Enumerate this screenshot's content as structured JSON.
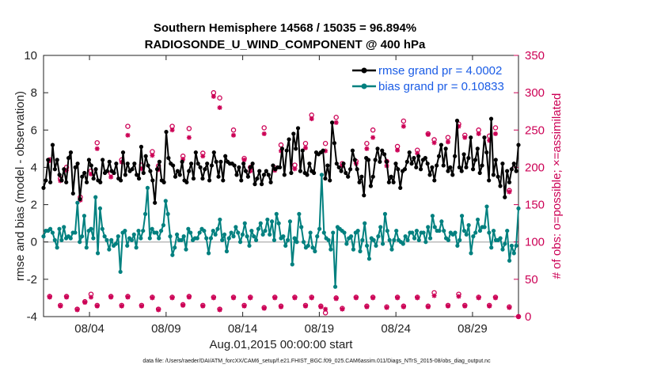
{
  "chart_data": {
    "type": "line",
    "title": "Southern Hemisphere 14568 / 15035 = 96.894%",
    "subtitle": "RADIOSONDE_U_WIND_COMPONENT @ 400 hPa",
    "xlabel": "Aug.01,2015 00:00:00 start",
    "ylabel": "rmse and bias (model - observation)",
    "ylabel_right": "# of obs: o=possible; ×=assimilated",
    "footnote": "data file: /Users/raeder/DAI/ATM_forcXX/CAM6_setup/f.e21.FHIST_BGC.f09_025.CAM6assim.011/Diags_NTrS_2015-08/obs_diag_output.nc",
    "xlim": [
      1,
      32
    ],
    "ylim": [
      -4,
      10
    ],
    "ylim_right": [
      0,
      350
    ],
    "x_ticks": [
      4,
      9,
      14,
      19,
      24,
      29
    ],
    "x_tick_labels": [
      "08/04",
      "08/09",
      "08/14",
      "08/19",
      "08/24",
      "08/29"
    ],
    "y_ticks": [
      -4,
      -2,
      0,
      2,
      4,
      6,
      8,
      10
    ],
    "y_tick_labels": [
      "-4",
      "-2",
      "0",
      "2",
      "4",
      "6",
      "8",
      "10"
    ],
    "y_ticks_right": [
      0,
      50,
      100,
      150,
      200,
      250,
      300,
      350
    ],
    "y_tick_labels_right": [
      "0",
      "50",
      "100",
      "150",
      "200",
      "250",
      "300",
      "350"
    ],
    "legend_position": "top-right",
    "series": [
      {
        "name": "rmse grand pr = 4.0002",
        "color": "#000000",
        "values": [
          2.9,
          3.3,
          4.4,
          3.2,
          5.2,
          3.9,
          4.4,
          3.6,
          3.3,
          3.9,
          3.2,
          4.5,
          4.8,
          2.6,
          4.0,
          4.2,
          2.3,
          3.5,
          3.7,
          3.2,
          4.4,
          4.1,
          3.4,
          3.9,
          3.3,
          3.2,
          4.4,
          3.7,
          3.8,
          4.3,
          3.8,
          3.7,
          4.2,
          3.4,
          3.3,
          4.8,
          3.6,
          4.2,
          3.8,
          3.9,
          4.2,
          3.6,
          3.4,
          5.1,
          3.7,
          4.6,
          4.1,
          3.8,
          3.3,
          2.1,
          3.9,
          4.3,
          3.3,
          3.2,
          5.9,
          4.5,
          4.2,
          4.1,
          3.5,
          3.8,
          3.6,
          4.3,
          3.3,
          3.2,
          3.8,
          4.2,
          3.4,
          4.8,
          4.2,
          4.0,
          3.4,
          3.9,
          4.2,
          3.3,
          4.1,
          4.8,
          4.3,
          3.5,
          4.3,
          3.3,
          4.6,
          4.3,
          4.2,
          4.2,
          4.1,
          3.6,
          4.0,
          3.3,
          4.2,
          3.8,
          3.5,
          4.0,
          4.2,
          3.1,
          3.4,
          3.8,
          3.1,
          3.6,
          3.8,
          3.6,
          3.2,
          4.1,
          3.9,
          4.0,
          4.0,
          5.0,
          3.6,
          4.9,
          5.5,
          3.7,
          5.8,
          5.0,
          6.1,
          3.8,
          4.9,
          3.7,
          3.6,
          4.2,
          3.8,
          3.7,
          4.8,
          4.7,
          4.8,
          4.9,
          3.4,
          4.1,
          3.3,
          6.4,
          5.3,
          4.2,
          4.0,
          3.8,
          4.2,
          3.7,
          3.5,
          3.9,
          4.9,
          4.4,
          3.9,
          3.2,
          3.5,
          2.5,
          4.5,
          4.4,
          3.0,
          3.5,
          4.4,
          5.0,
          4.3,
          4.9,
          4.7,
          4.3,
          3.2,
          3.5,
          3.2,
          4.2,
          3.9,
          2.9,
          3.8,
          3.9,
          4.3,
          4.8,
          4.2,
          4.5,
          4.0,
          4.6,
          3.9,
          4.4,
          4.5,
          4.2,
          3.6,
          4.0,
          3.3,
          4.1,
          4.6,
          5.2,
          4.1,
          5.0,
          3.8,
          4.0,
          3.6,
          4.6,
          6.5,
          4.0,
          3.8,
          4.7,
          4.0,
          4.5,
          5.6,
          3.9,
          4.4,
          5.0,
          3.7,
          4.1,
          5.6,
          4.8,
          3.3,
          6.6,
          3.6,
          4.4,
          3.5,
          3.0,
          4.2,
          2.4,
          3.8,
          3.2,
          3.9,
          4.2,
          3.8,
          5.2
        ]
      },
      {
        "name": "bias grand pr = 0.10833",
        "color": "#00807f",
        "values": [
          0.3,
          0.6,
          0.6,
          0.7,
          0.5,
          0.1,
          -0.3,
          0.7,
          0.1,
          0.8,
          0.2,
          0.3,
          0.2,
          0.5,
          0.5,
          2.1,
          0.0,
          0.3,
          1.4,
          -0.3,
          0.6,
          0.7,
          0.2,
          2.4,
          -0.6,
          1.8,
          0.7,
          0.3,
          0.1,
          -0.4,
          0.1,
          -0.2,
          -0.1,
          0.3,
          -1.6,
          0.5,
          0.6,
          -0.2,
          0.2,
          0.1,
          0.4,
          -0.3,
          0.6,
          0.2,
          0.6,
          1.5,
          2.9,
          0.2,
          0.7,
          0.5,
          0.5,
          0.2,
          0.6,
          0.9,
          2.2,
          1.5,
          0.3,
          -0.7,
          -0.3,
          0.4,
          0.1,
          0.1,
          0.3,
          -0.4,
          0.7,
          0.5,
          0.1,
          0.2,
          0.2,
          0.5,
          0.7,
          0.6,
          0.2,
          -0.6,
          0.2,
          0.6,
          0.4,
          0.7,
          1.2,
          0.1,
          0.4,
          -0.5,
          0.2,
          0.5,
          0.3,
          0.8,
          0.5,
          0.0,
          0.4,
          1.0,
          0.3,
          -0.2,
          0.6,
          0.3,
          0.1,
          0.7,
          1.0,
          0.4,
          0.6,
          1.2,
          0.4,
          1.1,
          0.1,
          1.5,
          1.0,
          0.2,
          0.3,
          -0.2,
          0.1,
          1.1,
          -1.2,
          0.2,
          0.0,
          1.5,
          0.8,
          0.0,
          -0.3,
          -0.2,
          0.5,
          -0.3,
          -0.5,
          0.3,
          0.7,
          3.6,
          0.5,
          0.2,
          0.1,
          -0.4,
          0.5,
          -2.4,
          0.8,
          0.7,
          0.6,
          0.5,
          -0.1,
          0.2,
          0.3,
          -0.4,
          0.5,
          0.6,
          -0.5,
          0.1,
          1.0,
          -0.2,
          -0.9,
          0.2,
          0.1,
          -0.2,
          0.3,
          0.8,
          -0.1,
          1.5,
          0.6,
          0.1,
          -0.4,
          0.1,
          0.6,
          0.1,
          0.0,
          -0.1,
          0.3,
          0.1,
          0.5,
          0.5,
          0.2,
          0.6,
          0.1,
          0.5,
          0.5,
          0.0,
          0.8,
          0.2,
          1.4,
          0.8,
          0.6,
          0.6,
          1.1,
          0.6,
          0.2,
          0.1,
          0.5,
          0.4,
          0.5,
          -0.2,
          0.1,
          1.4,
          0.6,
          0.4,
          0.9,
          -0.6,
          0.3,
          0.5,
          1.2,
          0.6,
          0.8,
          0.8,
          1.9,
          0.5,
          -0.3,
          0.6,
          0.1,
          0.1,
          0.2,
          -0.4,
          -0.1,
          0.6,
          -1.0,
          -0.2,
          -0.6,
          -0.2,
          1.8
        ]
      }
    ],
    "obs_possible": {
      "name": "possible",
      "color": "#cc0055",
      "marker": "o",
      "x": [
        1.4,
        2.1,
        2.5,
        3.4,
        4.1,
        4.5,
        5.4,
        6.1,
        6.5,
        7.4,
        8.1,
        8.5,
        9.4,
        10.1,
        10.5,
        11.4,
        12.1,
        12.5,
        13.4,
        14.1,
        14.5,
        15.4,
        16.1,
        16.5,
        17.4,
        18.1,
        18.5,
        19.4,
        20.1,
        20.5,
        21.4,
        22.1,
        22.5,
        23.4,
        24.1,
        24.5,
        25.4,
        26.1,
        26.5,
        27.4,
        28.1,
        28.5,
        29.4,
        30.1,
        30.5,
        31.4,
        32.0
      ],
      "y": [
        210,
        185,
        200,
        160,
        195,
        233,
        192,
        210,
        255,
        203,
        221,
        202,
        255,
        215,
        252,
        219,
        300,
        293,
        250,
        212,
        200,
        253,
        199,
        230,
        203,
        232,
        270,
        232,
        267,
        205,
        208,
        232,
        250,
        208,
        228,
        262,
        223,
        245,
        237,
        240,
        258,
        243,
        250,
        242,
        253,
        169,
        0
      ]
    },
    "obs_assimilated": {
      "name": "assimilated",
      "color": "#cc0055",
      "marker": "*",
      "x": [
        1.4,
        2.1,
        2.5,
        3.4,
        4.1,
        4.5,
        5.4,
        6.1,
        6.5,
        7.4,
        8.1,
        8.5,
        9.4,
        10.1,
        10.5,
        11.4,
        12.1,
        12.5,
        13.4,
        14.1,
        14.5,
        15.4,
        16.1,
        16.5,
        17.4,
        18.1,
        18.5,
        19.4,
        20.1,
        20.5,
        21.4,
        22.1,
        22.5,
        23.4,
        24.1,
        24.5,
        25.4,
        26.1,
        26.5,
        27.4,
        28.1,
        28.5,
        29.4,
        30.1,
        30.5,
        31.4,
        32.0
      ],
      "y": [
        209,
        182,
        196,
        156,
        191,
        225,
        187,
        207,
        243,
        198,
        216,
        197,
        250,
        211,
        240,
        215,
        295,
        280,
        243,
        210,
        195,
        245,
        196,
        222,
        198,
        226,
        265,
        222,
        260,
        202,
        205,
        225,
        240,
        202,
        223,
        255,
        219,
        244,
        233,
        234,
        255,
        240,
        245,
        236,
        245,
        167,
        0
      ]
    },
    "obs_low_possible": {
      "x": [
        1.4,
        2.1,
        2.5,
        3.2,
        3.7,
        4.1,
        4.5,
        5.4,
        6.1,
        6.5,
        7.4,
        8.1,
        8.5,
        9.4,
        10.1,
        10.5,
        11.4,
        12.1,
        12.5,
        13.4,
        14.1,
        14.5,
        15.4,
        16.1,
        16.5,
        17.4,
        18.1,
        18.5,
        19.1,
        19.4,
        20.1,
        20.5,
        21.4,
        22.1,
        22.5,
        23.4,
        24.1,
        24.5,
        25.4,
        26.1,
        26.5,
        27.4,
        28.1,
        28.5,
        29.4,
        30.1,
        30.5,
        31.4
      ],
      "y": [
        27,
        15,
        27,
        10,
        20,
        30,
        15,
        27,
        15,
        27,
        15,
        26,
        10,
        26,
        16,
        27,
        15,
        26,
        10,
        26,
        15,
        26,
        12,
        26,
        14,
        26,
        15,
        26,
        14,
        5,
        25,
        11,
        26,
        14,
        26,
        13,
        26,
        14,
        26,
        14,
        32,
        15,
        30,
        15,
        26,
        15,
        26,
        13
      ]
    },
    "obs_low_assimilated": {
      "x": [
        1.4,
        2.1,
        2.5,
        3.2,
        3.7,
        4.1,
        4.5,
        5.4,
        6.1,
        6.5,
        7.4,
        8.1,
        8.5,
        9.4,
        10.1,
        10.5,
        11.4,
        12.1,
        12.5,
        13.4,
        14.1,
        14.5,
        15.4,
        16.1,
        16.5,
        17.4,
        18.1,
        18.5,
        19.1,
        19.4,
        20.1,
        20.5,
        21.4,
        22.1,
        22.5,
        23.4,
        24.1,
        24.5,
        25.4,
        26.1,
        26.5,
        27.4,
        28.1,
        28.5,
        29.4,
        30.1,
        30.5,
        31.4
      ],
      "y": [
        26,
        14,
        26,
        9,
        19,
        26,
        14,
        26,
        14,
        26,
        14,
        25,
        9,
        25,
        15,
        26,
        14,
        25,
        9,
        25,
        14,
        25,
        11,
        25,
        13,
        25,
        14,
        25,
        13,
        10,
        24,
        10,
        25,
        13,
        25,
        12,
        25,
        13,
        25,
        13,
        28,
        14,
        27,
        14,
        25,
        14,
        25,
        12
      ]
    }
  }
}
